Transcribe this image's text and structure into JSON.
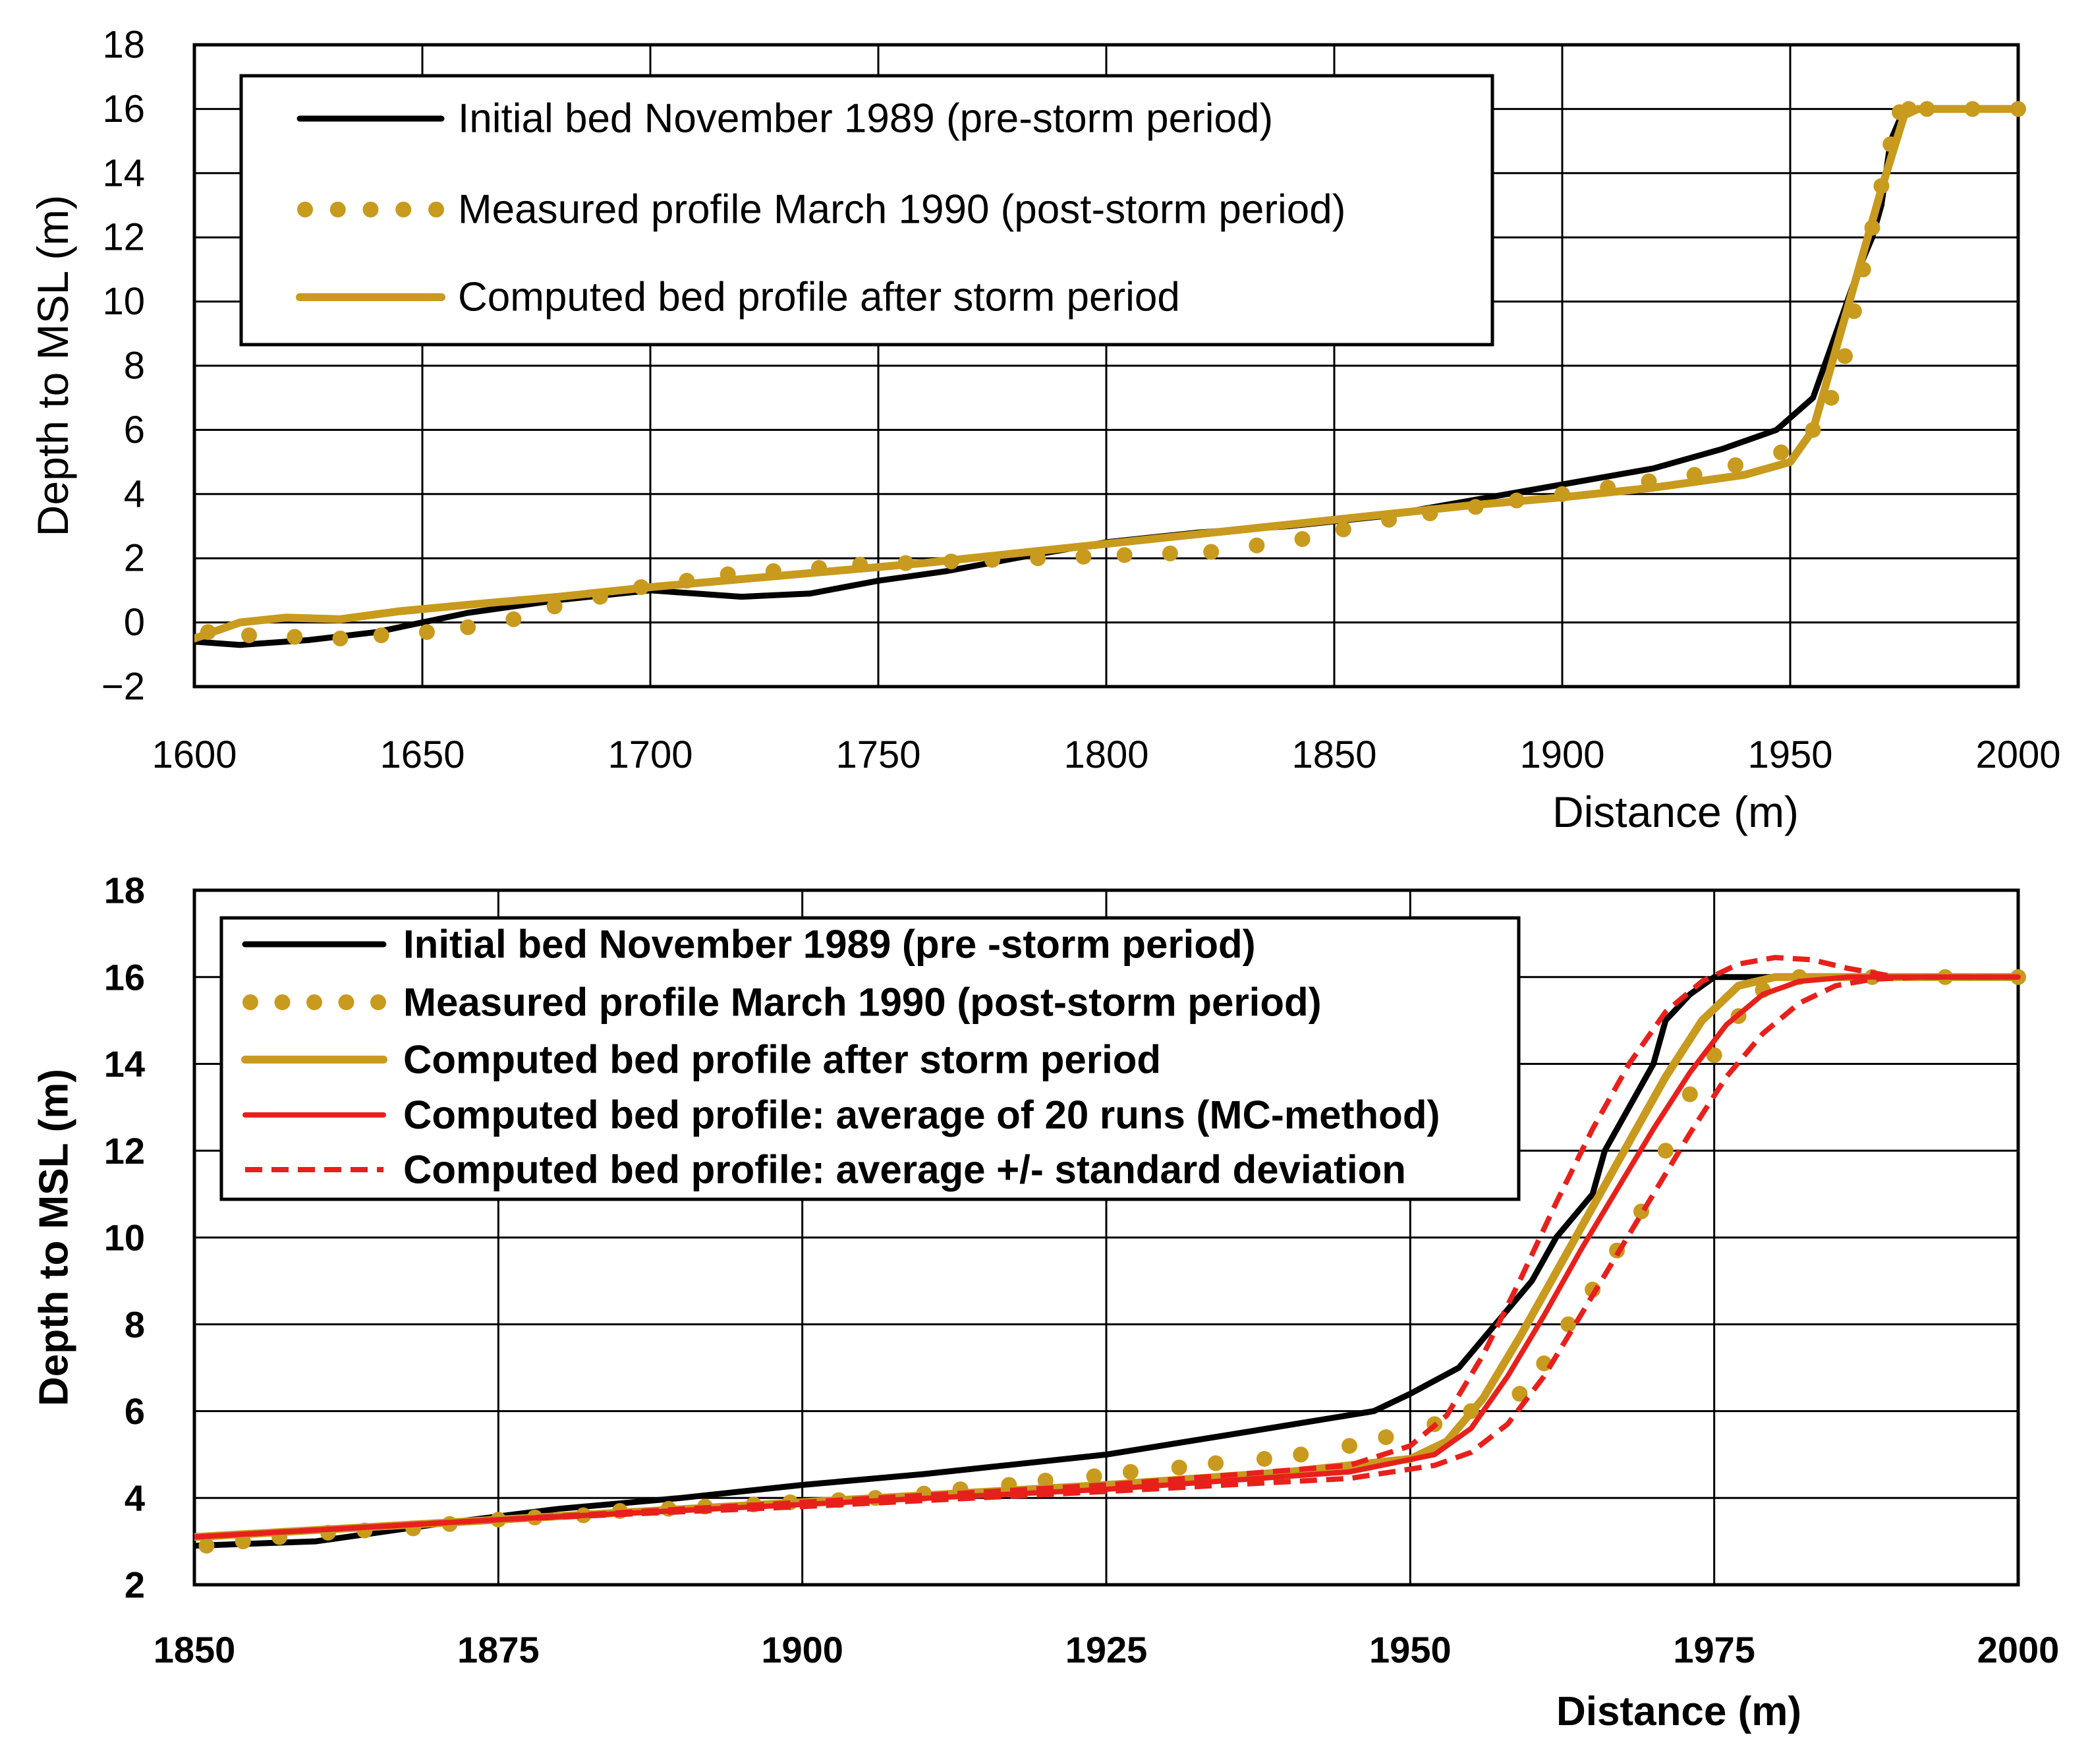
{
  "chart_data": [
    {
      "type": "line",
      "xlabel": "Distance (m)",
      "ylabel": "Depth to MSL (m)",
      "xlim": [
        1600,
        2000
      ],
      "ylim": [
        -2,
        18
      ],
      "xticks": [
        1600,
        1650,
        1700,
        1750,
        1800,
        1850,
        1900,
        1950,
        2000
      ],
      "yticks": [
        -2,
        0,
        2,
        4,
        6,
        8,
        10,
        12,
        14,
        16,
        18
      ],
      "ytick_labels": [
        "−2",
        "0",
        "2",
        "4",
        "6",
        "8",
        "10",
        "12",
        "14",
        "16",
        "18"
      ],
      "grid": true,
      "legend_position": "top-left",
      "colors": {
        "black": "#000000",
        "gold": "#c89a1e",
        "red": "#e8201c"
      },
      "series": [
        {
          "name": "Initial bed November 1989 (pre-storm period)",
          "style": "solid-black",
          "x": [
            1600,
            1610,
            1625,
            1640,
            1660,
            1680,
            1700,
            1710,
            1720,
            1735,
            1750,
            1765,
            1780,
            1800,
            1820,
            1840,
            1860,
            1880,
            1900,
            1920,
            1935,
            1947,
            1955,
            1960,
            1965,
            1968,
            1970,
            1972,
            1975,
            1980,
            2000
          ],
          "y": [
            -0.6,
            -0.7,
            -0.55,
            -0.3,
            0.3,
            0.7,
            1.0,
            0.9,
            0.8,
            0.9,
            1.3,
            1.6,
            2.0,
            2.5,
            2.8,
            3.0,
            3.3,
            3.8,
            4.3,
            4.8,
            5.4,
            6.0,
            7.0,
            9.0,
            11.0,
            12.0,
            13.0,
            15.0,
            16.0,
            16.0,
            16.0
          ]
        },
        {
          "name": "Measured profile March 1990 (post-storm period)",
          "style": "dotted-gold",
          "x": [
            1603,
            1612,
            1622,
            1632,
            1641,
            1651,
            1660,
            1670,
            1679,
            1689,
            1698,
            1708,
            1717,
            1727,
            1737,
            1746,
            1756,
            1766,
            1775,
            1785,
            1795,
            1804,
            1814,
            1823,
            1833,
            1843,
            1852,
            1862,
            1871,
            1881,
            1890,
            1900,
            1910,
            1919,
            1929,
            1938,
            1948,
            1955,
            1959,
            1962,
            1964,
            1966,
            1968,
            1970,
            1972,
            1974,
            1976,
            1980,
            1990,
            2000
          ],
          "y": [
            -0.3,
            -0.4,
            -0.45,
            -0.5,
            -0.4,
            -0.3,
            -0.15,
            0.1,
            0.5,
            0.8,
            1.1,
            1.3,
            1.5,
            1.6,
            1.7,
            1.8,
            1.85,
            1.9,
            1.95,
            2.0,
            2.05,
            2.1,
            2.15,
            2.2,
            2.4,
            2.6,
            2.9,
            3.2,
            3.4,
            3.6,
            3.8,
            4.0,
            4.2,
            4.4,
            4.6,
            4.9,
            5.3,
            6.0,
            7.0,
            8.3,
            9.7,
            11.0,
            12.3,
            13.6,
            14.9,
            15.9,
            16.0,
            16.0,
            16.0,
            16.0
          ]
        },
        {
          "name": "Computed bed profile after storm period",
          "style": "solid-gold",
          "x": [
            1600,
            1610,
            1620,
            1632,
            1645,
            1660,
            1680,
            1700,
            1720,
            1740,
            1760,
            1780,
            1800,
            1820,
            1840,
            1860,
            1880,
            1900,
            1920,
            1940,
            1950,
            1955,
            1960,
            1965,
            1970,
            1975,
            1978,
            1980,
            2000
          ],
          "y": [
            -0.5,
            0.0,
            0.15,
            0.1,
            0.35,
            0.55,
            0.8,
            1.1,
            1.35,
            1.6,
            1.85,
            2.15,
            2.45,
            2.75,
            3.05,
            3.35,
            3.65,
            3.9,
            4.2,
            4.6,
            5.0,
            6.0,
            8.5,
            11.0,
            13.5,
            15.8,
            16.0,
            16.0,
            16.0
          ]
        }
      ]
    },
    {
      "type": "line",
      "xlabel": "Distance (m)",
      "ylabel": "Depth to MSL (m)",
      "xlim": [
        1850,
        2000
      ],
      "ylim": [
        2,
        18
      ],
      "xticks": [
        1850,
        1875,
        1900,
        1925,
        1950,
        1975,
        2000
      ],
      "yticks": [
        2,
        4,
        6,
        8,
        10,
        12,
        14,
        16,
        18
      ],
      "ytick_labels": [
        "2",
        "4",
        "6",
        "8",
        "10",
        "12",
        "14",
        "16",
        "18"
      ],
      "grid": true,
      "legend_position": "top-left",
      "colors": {
        "black": "#000000",
        "gold": "#c89a1e",
        "red": "#e8201c"
      },
      "series": [
        {
          "name": "Initial bed November 1989 (pre -storm period)",
          "style": "solid-black",
          "x": [
            1850,
            1860,
            1870,
            1880,
            1890,
            1900,
            1910,
            1920,
            1925,
            1935,
            1947,
            1950,
            1954,
            1957,
            1960,
            1962,
            1965,
            1966,
            1970,
            1971,
            1973,
            1975,
            1980,
            2000
          ],
          "y": [
            2.9,
            3.0,
            3.4,
            3.75,
            4.0,
            4.3,
            4.55,
            4.85,
            5.0,
            5.45,
            6.0,
            6.4,
            7.0,
            8.0,
            9.0,
            10.0,
            11.0,
            12.0,
            14.0,
            15.0,
            15.6,
            16.0,
            16.0,
            16.0
          ]
        },
        {
          "name": "Measured profile March 1990 (post-storm period)",
          "style": "dotted-gold",
          "x": [
            1851,
            1854,
            1857,
            1861,
            1864,
            1868,
            1871,
            1875,
            1878,
            1882,
            1885,
            1889,
            1892,
            1896,
            1899,
            1903,
            1906,
            1910,
            1913,
            1917,
            1920,
            1924,
            1927,
            1931,
            1934,
            1938,
            1941,
            1945,
            1948,
            1952,
            1955,
            1959,
            1961,
            1963,
            1965,
            1967,
            1969,
            1971,
            1973,
            1975,
            1977,
            1979,
            1982,
            1988,
            1994,
            2000
          ],
          "y": [
            2.9,
            3.0,
            3.1,
            3.2,
            3.25,
            3.3,
            3.4,
            3.5,
            3.55,
            3.6,
            3.7,
            3.75,
            3.8,
            3.85,
            3.9,
            3.95,
            4.0,
            4.1,
            4.2,
            4.3,
            4.4,
            4.5,
            4.6,
            4.7,
            4.8,
            4.9,
            5.0,
            5.2,
            5.4,
            5.7,
            6.0,
            6.4,
            7.1,
            8.0,
            8.8,
            9.7,
            10.6,
            12.0,
            13.3,
            14.2,
            15.1,
            15.7,
            16.0,
            16.0,
            16.0,
            16.0
          ]
        },
        {
          "name": "Computed bed profile after storm period",
          "style": "solid-gold",
          "x": [
            1850,
            1875,
            1900,
            1925,
            1940,
            1950,
            1953,
            1956,
            1959,
            1962,
            1965,
            1968,
            1971,
            1974,
            1977,
            1980,
            1990,
            2000
          ],
          "y": [
            3.1,
            3.5,
            3.9,
            4.3,
            4.6,
            4.9,
            5.3,
            6.3,
            7.7,
            9.2,
            10.7,
            12.2,
            13.7,
            15.0,
            15.8,
            16.0,
            16.0,
            16.0
          ]
        },
        {
          "name": "Computed bed profile: average of 20 runs (MC-method)",
          "style": "solid-red",
          "x": [
            1850,
            1875,
            1900,
            1925,
            1945,
            1952,
            1955,
            1958,
            1961,
            1964,
            1967,
            1970,
            1973,
            1976,
            1979,
            1982,
            1986,
            1990,
            2000
          ],
          "y": [
            3.1,
            3.5,
            3.85,
            4.2,
            4.6,
            5.0,
            5.6,
            6.8,
            8.2,
            9.7,
            11.1,
            12.5,
            13.8,
            14.9,
            15.6,
            15.9,
            16.0,
            16.0,
            16.0
          ]
        },
        {
          "name": "Computed bed profile: average +/- standard deviation",
          "style": "dashed-red",
          "x": [
            1850,
            1875,
            1900,
            1925,
            1945,
            1950,
            1953,
            1956,
            1959,
            1962,
            1965,
            1968,
            1971,
            1974,
            1977,
            1980,
            1983,
            1986,
            1990,
            2000
          ],
          "y": [
            3.1,
            3.5,
            3.9,
            4.3,
            4.75,
            5.2,
            5.9,
            7.3,
            9.0,
            10.8,
            12.5,
            14.0,
            15.2,
            15.9,
            16.3,
            16.45,
            16.4,
            16.2,
            16.0,
            16.0
          ]
        },
        {
          "name": "lower band (average - standard deviation)",
          "style": "dashed-red",
          "legend": false,
          "x": [
            1850,
            1875,
            1900,
            1925,
            1945,
            1952,
            1955,
            1958,
            1961,
            1964,
            1967,
            1970,
            1973,
            1976,
            1979,
            1982,
            1985,
            1988,
            1992,
            2000
          ],
          "y": [
            3.1,
            3.5,
            3.8,
            4.15,
            4.45,
            4.75,
            5.05,
            5.7,
            6.8,
            8.2,
            9.6,
            11.0,
            12.4,
            13.7,
            14.7,
            15.4,
            15.8,
            15.95,
            16.0,
            16.0
          ]
        }
      ]
    }
  ]
}
